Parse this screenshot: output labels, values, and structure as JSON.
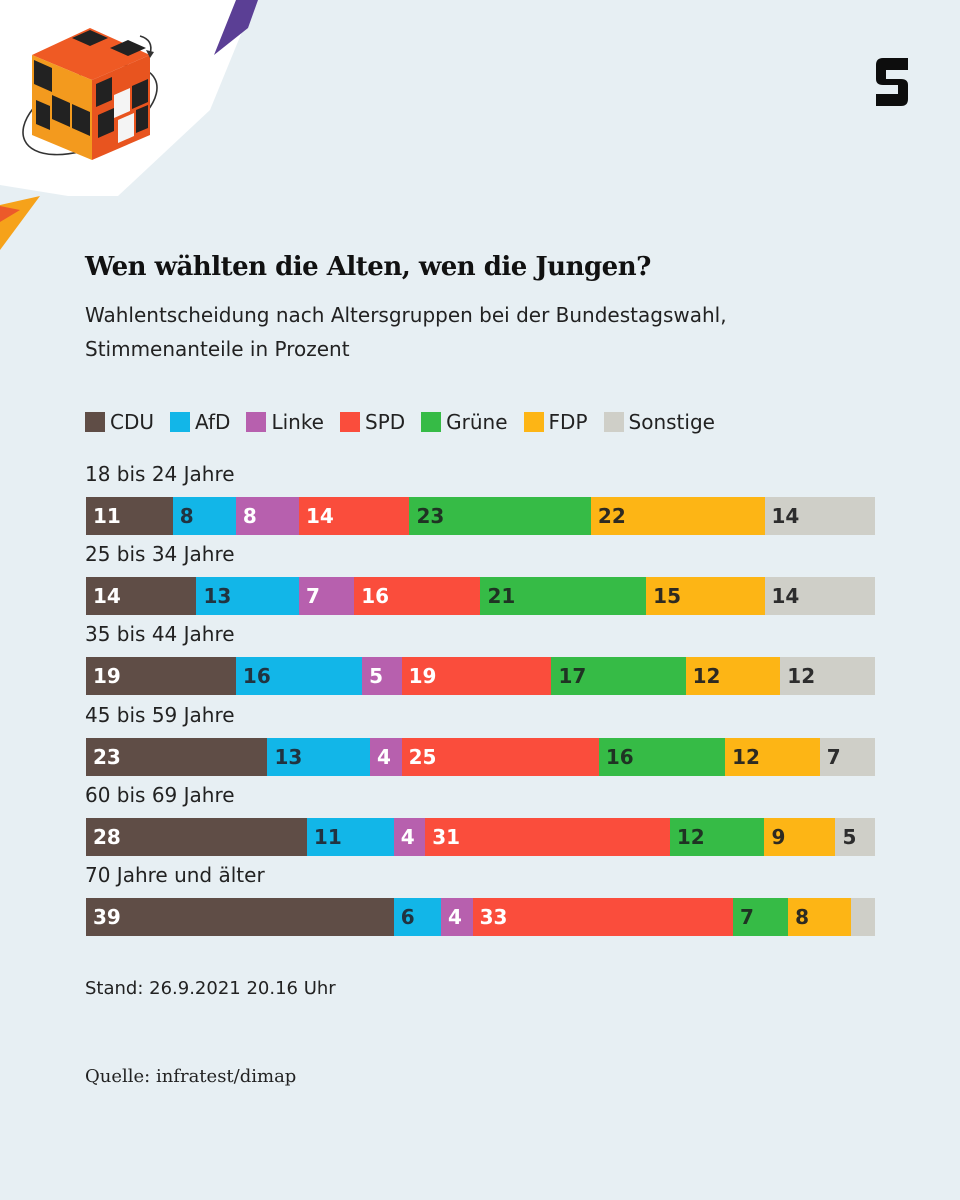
{
  "brand": {
    "logo_letter": "S"
  },
  "chart_data": {
    "type": "bar",
    "orientation": "horizontal",
    "stacked": true,
    "unit": "Prozent",
    "title": "Wen wählten die Alten, wen die Jungen?",
    "subtitle_lines": [
      "Wahlentscheidung nach Altersgruppen bei der Bundestagswahl,",
      "Stimmenanteile in Prozent"
    ],
    "legend_placement": "top",
    "categories": [
      "18 bis 24 Jahre",
      "25 bis 34 Jahre",
      "35 bis 44 Jahre",
      "45 bis 59 Jahre",
      "60 bis 69 Jahre",
      "70 Jahre und älter"
    ],
    "series": [
      {
        "name": "CDU",
        "color": "#5f4d46",
        "text_color": "#ffffff",
        "values": [
          11,
          14,
          19,
          23,
          28,
          39
        ]
      },
      {
        "name": "AfD",
        "color": "#12b6e8",
        "text_color": "#213340",
        "values": [
          8,
          13,
          16,
          13,
          11,
          6
        ]
      },
      {
        "name": "Linke",
        "color": "#b760ae",
        "text_color": "#ffffff",
        "values": [
          8,
          7,
          5,
          4,
          4,
          4
        ]
      },
      {
        "name": "SPD",
        "color": "#fa4d3c",
        "text_color": "#ffffff",
        "values": [
          14,
          16,
          19,
          25,
          31,
          33
        ]
      },
      {
        "name": "Grüne",
        "color": "#36bb46",
        "text_color": "#1f3323",
        "values": [
          23,
          21,
          17,
          16,
          12,
          7
        ]
      },
      {
        "name": "FDP",
        "color": "#fdb515",
        "text_color": "#2d2a22",
        "values": [
          22,
          15,
          12,
          12,
          9,
          8
        ]
      },
      {
        "name": "Sonstige",
        "color": "#cfcfc8",
        "text_color": "#2d2d2d",
        "values": [
          14,
          14,
          12,
          7,
          5,
          null
        ]
      }
    ],
    "footer": {
      "stand": "Stand: 26.9.2021 20.16 Uhr",
      "source": "Quelle: infratest/dimap"
    }
  }
}
